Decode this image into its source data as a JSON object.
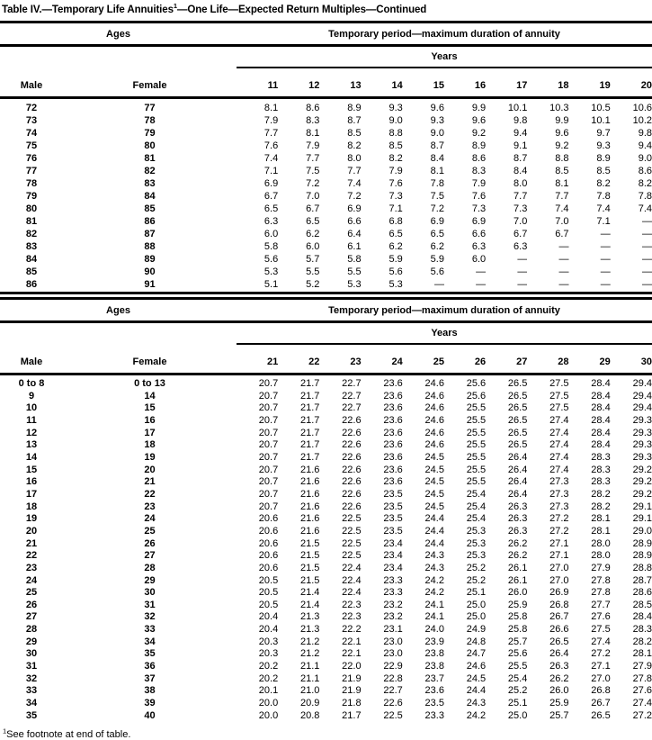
{
  "colors": {
    "text": "#000000",
    "background": "#ffffff"
  },
  "title": {
    "text_before_sup": "Table IV.—Temporary Life Annuities",
    "superscript": "1",
    "text_after_sup": "—One Life—Expected Return Multiples—Continued"
  },
  "footnote": {
    "superscript": "1",
    "text": "See footnote at end of table."
  },
  "tables": [
    {
      "ages_header": "Ages",
      "period_header": "Temporary period—maximum duration of annuity",
      "years_header": "Years",
      "male_header": "Male",
      "female_header": "Female",
      "year_columns": [
        "11",
        "12",
        "13",
        "14",
        "15",
        "16",
        "17",
        "18",
        "19",
        "20"
      ],
      "rows": [
        {
          "male": "72",
          "female": "77",
          "values": [
            "8.1",
            "8.6",
            "8.9",
            "9.3",
            "9.6",
            "9.9",
            "10.1",
            "10.3",
            "10.5",
            "10.6"
          ]
        },
        {
          "male": "73",
          "female": "78",
          "values": [
            "7.9",
            "8.3",
            "8.7",
            "9.0",
            "9.3",
            "9.6",
            "9.8",
            "9.9",
            "10.1",
            "10.2"
          ]
        },
        {
          "male": "74",
          "female": "79",
          "values": [
            "7.7",
            "8.1",
            "8.5",
            "8.8",
            "9.0",
            "9.2",
            "9.4",
            "9.6",
            "9.7",
            "9.8"
          ]
        },
        {
          "male": "75",
          "female": "80",
          "values": [
            "7.6",
            "7.9",
            "8.2",
            "8.5",
            "8.7",
            "8.9",
            "9.1",
            "9.2",
            "9.3",
            "9.4"
          ]
        },
        {
          "male": "76",
          "female": "81",
          "values": [
            "7.4",
            "7.7",
            "8.0",
            "8.2",
            "8.4",
            "8.6",
            "8.7",
            "8.8",
            "8.9",
            "9.0"
          ]
        },
        {
          "male": "77",
          "female": "82",
          "values": [
            "7.1",
            "7.5",
            "7.7",
            "7.9",
            "8.1",
            "8.3",
            "8.4",
            "8.5",
            "8.5",
            "8.6"
          ]
        },
        {
          "male": "78",
          "female": "83",
          "values": [
            "6.9",
            "7.2",
            "7.4",
            "7.6",
            "7.8",
            "7.9",
            "8.0",
            "8.1",
            "8.2",
            "8.2"
          ]
        },
        {
          "male": "79",
          "female": "84",
          "values": [
            "6.7",
            "7.0",
            "7.2",
            "7.3",
            "7.5",
            "7.6",
            "7.7",
            "7.7",
            "7.8",
            "7.8"
          ]
        },
        {
          "male": "80",
          "female": "85",
          "values": [
            "6.5",
            "6.7",
            "6.9",
            "7.1",
            "7.2",
            "7.3",
            "7.3",
            "7.4",
            "7.4",
            "7.4"
          ]
        },
        {
          "male": "81",
          "female": "86",
          "values": [
            "6.3",
            "6.5",
            "6.6",
            "6.8",
            "6.9",
            "6.9",
            "7.0",
            "7.0",
            "7.1",
            "—"
          ]
        },
        {
          "male": "82",
          "female": "87",
          "values": [
            "6.0",
            "6.2",
            "6.4",
            "6.5",
            "6.5",
            "6.6",
            "6.7",
            "6.7",
            "—",
            "—"
          ]
        },
        {
          "male": "83",
          "female": "88",
          "values": [
            "5.8",
            "6.0",
            "6.1",
            "6.2",
            "6.2",
            "6.3",
            "6.3",
            "—",
            "—",
            "—"
          ]
        },
        {
          "male": "84",
          "female": "89",
          "values": [
            "5.6",
            "5.7",
            "5.8",
            "5.9",
            "5.9",
            "6.0",
            "—",
            "—",
            "—",
            "—"
          ]
        },
        {
          "male": "85",
          "female": "90",
          "values": [
            "5.3",
            "5.5",
            "5.5",
            "5.6",
            "5.6",
            "—",
            "—",
            "—",
            "—",
            "—"
          ]
        },
        {
          "male": "86",
          "female": "91",
          "values": [
            "5.1",
            "5.2",
            "5.3",
            "5.3",
            "—",
            "—",
            "—",
            "—",
            "—",
            "—"
          ]
        }
      ]
    },
    {
      "ages_header": "Ages",
      "period_header": "Temporary period—maximum duration of annuity",
      "years_header": "Years",
      "male_header": "Male",
      "female_header": "Female",
      "year_columns": [
        "21",
        "22",
        "23",
        "24",
        "25",
        "26",
        "27",
        "28",
        "29",
        "30"
      ],
      "rows": [
        {
          "male": "0 to 8",
          "female": "0 to 13",
          "values": [
            "20.7",
            "21.7",
            "22.7",
            "23.6",
            "24.6",
            "25.6",
            "26.5",
            "27.5",
            "28.4",
            "29.4"
          ]
        },
        {
          "male": "9",
          "female": "14",
          "values": [
            "20.7",
            "21.7",
            "22.7",
            "23.6",
            "24.6",
            "25.6",
            "26.5",
            "27.5",
            "28.4",
            "29.4"
          ]
        },
        {
          "male": "10",
          "female": "15",
          "values": [
            "20.7",
            "21.7",
            "22.7",
            "23.6",
            "24.6",
            "25.5",
            "26.5",
            "27.5",
            "28.4",
            "29.4"
          ]
        },
        {
          "male": "11",
          "female": "16",
          "values": [
            "20.7",
            "21.7",
            "22.6",
            "23.6",
            "24.6",
            "25.5",
            "26.5",
            "27.4",
            "28.4",
            "29.3"
          ]
        },
        {
          "male": "12",
          "female": "17",
          "values": [
            "20.7",
            "21.7",
            "22.6",
            "23.6",
            "24.6",
            "25.5",
            "26.5",
            "27.4",
            "28.4",
            "29.3"
          ]
        },
        {
          "male": "13",
          "female": "18",
          "values": [
            "20.7",
            "21.7",
            "22.6",
            "23.6",
            "24.6",
            "25.5",
            "26.5",
            "27.4",
            "28.4",
            "29.3"
          ]
        },
        {
          "male": "14",
          "female": "19",
          "values": [
            "20.7",
            "21.7",
            "22.6",
            "23.6",
            "24.5",
            "25.5",
            "26.4",
            "27.4",
            "28.3",
            "29.3"
          ]
        },
        {
          "male": "15",
          "female": "20",
          "values": [
            "20.7",
            "21.6",
            "22.6",
            "23.6",
            "24.5",
            "25.5",
            "26.4",
            "27.4",
            "28.3",
            "29.2"
          ]
        },
        {
          "male": "16",
          "female": "21",
          "values": [
            "20.7",
            "21.6",
            "22.6",
            "23.6",
            "24.5",
            "25.5",
            "26.4",
            "27.3",
            "28.3",
            "29.2"
          ]
        },
        {
          "male": "17",
          "female": "22",
          "values": [
            "20.7",
            "21.6",
            "22.6",
            "23.5",
            "24.5",
            "25.4",
            "26.4",
            "27.3",
            "28.2",
            "29.2"
          ]
        },
        {
          "male": "18",
          "female": "23",
          "values": [
            "20.7",
            "21.6",
            "22.6",
            "23.5",
            "24.5",
            "25.4",
            "26.3",
            "27.3",
            "28.2",
            "29.1"
          ]
        },
        {
          "male": "19",
          "female": "24",
          "values": [
            "20.6",
            "21.6",
            "22.5",
            "23.5",
            "24.4",
            "25.4",
            "26.3",
            "27.2",
            "28.1",
            "29.1"
          ]
        },
        {
          "male": "20",
          "female": "25",
          "values": [
            "20.6",
            "21.6",
            "22.5",
            "23.5",
            "24.4",
            "25.3",
            "26.3",
            "27.2",
            "28.1",
            "29.0"
          ]
        },
        {
          "male": "21",
          "female": "26",
          "values": [
            "20.6",
            "21.5",
            "22.5",
            "23.4",
            "24.4",
            "25.3",
            "26.2",
            "27.1",
            "28.0",
            "28.9"
          ]
        },
        {
          "male": "22",
          "female": "27",
          "values": [
            "20.6",
            "21.5",
            "22.5",
            "23.4",
            "24.3",
            "25.3",
            "26.2",
            "27.1",
            "28.0",
            "28.9"
          ]
        },
        {
          "male": "23",
          "female": "28",
          "values": [
            "20.6",
            "21.5",
            "22.4",
            "23.4",
            "24.3",
            "25.2",
            "26.1",
            "27.0",
            "27.9",
            "28.8"
          ]
        },
        {
          "male": "24",
          "female": "29",
          "values": [
            "20.5",
            "21.5",
            "22.4",
            "23.3",
            "24.2",
            "25.2",
            "26.1",
            "27.0",
            "27.8",
            "28.7"
          ]
        },
        {
          "male": "25",
          "female": "30",
          "values": [
            "20.5",
            "21.4",
            "22.4",
            "23.3",
            "24.2",
            "25.1",
            "26.0",
            "26.9",
            "27.8",
            "28.6"
          ]
        },
        {
          "male": "26",
          "female": "31",
          "values": [
            "20.5",
            "21.4",
            "22.3",
            "23.2",
            "24.1",
            "25.0",
            "25.9",
            "26.8",
            "27.7",
            "28.5"
          ]
        },
        {
          "male": "27",
          "female": "32",
          "values": [
            "20.4",
            "21.3",
            "22.3",
            "23.2",
            "24.1",
            "25.0",
            "25.8",
            "26.7",
            "27.6",
            "28.4"
          ]
        },
        {
          "male": "28",
          "female": "33",
          "values": [
            "20.4",
            "21.3",
            "22.2",
            "23.1",
            "24.0",
            "24.9",
            "25.8",
            "26.6",
            "27.5",
            "28.3"
          ]
        },
        {
          "male": "29",
          "female": "34",
          "values": [
            "20.3",
            "21.2",
            "22.1",
            "23.0",
            "23.9",
            "24.8",
            "25.7",
            "26.5",
            "27.4",
            "28.2"
          ]
        },
        {
          "male": "30",
          "female": "35",
          "values": [
            "20.3",
            "21.2",
            "22.1",
            "23.0",
            "23.8",
            "24.7",
            "25.6",
            "26.4",
            "27.2",
            "28.1"
          ]
        },
        {
          "male": "31",
          "female": "36",
          "values": [
            "20.2",
            "21.1",
            "22.0",
            "22.9",
            "23.8",
            "24.6",
            "25.5",
            "26.3",
            "27.1",
            "27.9"
          ]
        },
        {
          "male": "32",
          "female": "37",
          "values": [
            "20.2",
            "21.1",
            "21.9",
            "22.8",
            "23.7",
            "24.5",
            "25.4",
            "26.2",
            "27.0",
            "27.8"
          ]
        },
        {
          "male": "33",
          "female": "38",
          "values": [
            "20.1",
            "21.0",
            "21.9",
            "22.7",
            "23.6",
            "24.4",
            "25.2",
            "26.0",
            "26.8",
            "27.6"
          ]
        },
        {
          "male": "34",
          "female": "39",
          "values": [
            "20.0",
            "20.9",
            "21.8",
            "22.6",
            "23.5",
            "24.3",
            "25.1",
            "25.9",
            "26.7",
            "27.4"
          ]
        },
        {
          "male": "35",
          "female": "40",
          "values": [
            "20.0",
            "20.8",
            "21.7",
            "22.5",
            "23.3",
            "24.2",
            "25.0",
            "25.7",
            "26.5",
            "27.2"
          ]
        }
      ]
    }
  ]
}
